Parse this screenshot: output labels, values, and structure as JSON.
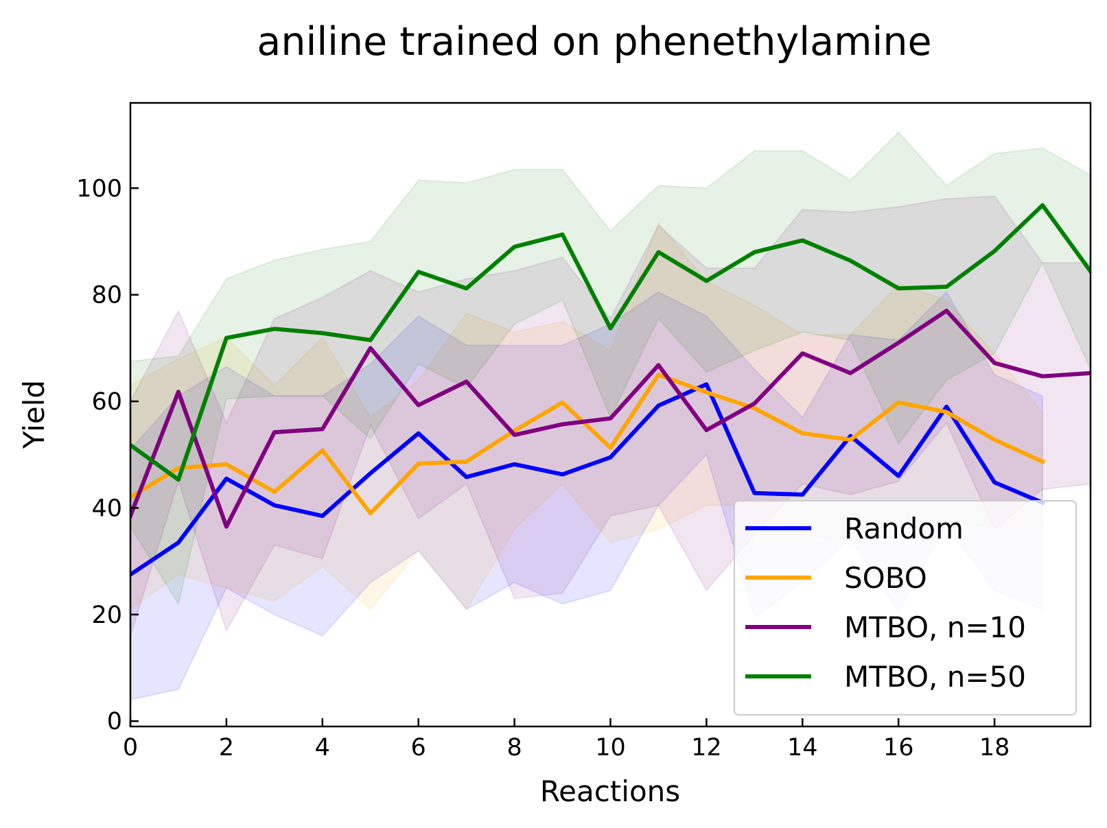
{
  "chart_data": {
    "type": "line",
    "title": "aniline trained on phenethylamine",
    "xlabel": "Reactions",
    "ylabel": "Yield",
    "xlim": [
      0,
      20
    ],
    "ylim": [
      -1,
      116
    ],
    "xticks": [
      0,
      2,
      4,
      6,
      8,
      10,
      12,
      14,
      16,
      18
    ],
    "yticks": [
      0,
      20,
      40,
      60,
      80,
      100
    ],
    "grid": false,
    "legend_position": "lower-right",
    "series": [
      {
        "name": "Random",
        "color": "#0000ff",
        "x": [
          0,
          1,
          2,
          3,
          4,
          5,
          6,
          7,
          8,
          9,
          10,
          11,
          12,
          13,
          14,
          15,
          16,
          17,
          18,
          19
        ],
        "values": [
          27.5,
          33.5,
          45.5,
          40.5,
          38.5,
          46.5,
          54.0,
          45.8,
          48.2,
          46.3,
          49.5,
          59.2,
          63.2,
          42.8,
          42.5,
          53.5,
          46.0,
          59.0,
          44.8,
          41.0
        ],
        "lower": [
          4.0,
          6.0,
          25.0,
          20.0,
          16.0,
          26.0,
          32.0,
          21.0,
          26.0,
          22.0,
          24.5,
          40.5,
          50.0,
          19.5,
          26.0,
          34.5,
          20.5,
          37.0,
          24.5,
          21.0
        ],
        "upper": [
          51.0,
          61.0,
          66.5,
          61.0,
          61.0,
          67.0,
          76.0,
          70.5,
          70.5,
          70.5,
          74.5,
          80.5,
          76.0,
          66.0,
          57.0,
          72.5,
          71.5,
          80.5,
          65.0,
          61.0
        ]
      },
      {
        "name": "SOBO",
        "color": "#ffa500",
        "x": [
          0,
          1,
          2,
          3,
          4,
          5,
          6,
          7,
          8,
          9,
          10,
          11,
          12,
          13,
          14,
          15,
          16,
          17,
          18,
          19
        ],
        "values": [
          42.0,
          47.5,
          48.2,
          43.0,
          50.8,
          39.0,
          48.3,
          48.7,
          54.5,
          59.8,
          51.3,
          65.0,
          61.7,
          58.7,
          54.0,
          52.8,
          59.8,
          58.0,
          52.8,
          48.7
        ],
        "lower": [
          21.0,
          27.5,
          25.0,
          22.5,
          29.0,
          21.0,
          32.0,
          21.0,
          36.0,
          44.5,
          33.5,
          36.0,
          40.5,
          40.5,
          35.5,
          33.0,
          38.0,
          37.0,
          36.5,
          36.5
        ],
        "upper": [
          63.0,
          68.0,
          72.0,
          63.0,
          72.0,
          57.0,
          64.0,
          76.5,
          73.0,
          75.0,
          69.5,
          93.5,
          82.5,
          78.0,
          72.5,
          72.5,
          82.0,
          79.0,
          69.0,
          58.0
        ]
      },
      {
        "name": "MTBO, n=10",
        "color": "#800080",
        "x": [
          0,
          1,
          2,
          3,
          4,
          5,
          6,
          7,
          8,
          9,
          10,
          11,
          12,
          13,
          14,
          15,
          16,
          17,
          18,
          19,
          20
        ],
        "values": [
          38.5,
          61.8,
          36.5,
          54.2,
          54.8,
          70.0,
          59.3,
          63.7,
          53.7,
          55.7,
          56.8,
          66.8,
          54.6,
          59.6,
          69.0,
          65.3,
          71.0,
          77.0,
          67.2,
          64.7,
          65.3
        ],
        "lower": [
          16.0,
          45.0,
          17.0,
          33.0,
          30.5,
          55.5,
          38.0,
          44.5,
          23.0,
          24.0,
          38.5,
          40.5,
          24.5,
          35.0,
          44.5,
          42.5,
          45.0,
          56.0,
          36.0,
          43.5,
          44.5
        ],
        "upper": [
          60.0,
          77.0,
          56.0,
          75.5,
          79.5,
          84.5,
          80.5,
          83.0,
          84.5,
          87.0,
          75.5,
          93.0,
          85.0,
          85.0,
          96.0,
          95.5,
          96.5,
          98.0,
          98.5,
          86.0,
          86.0
        ]
      },
      {
        "name": "MTBO, n=50",
        "color": "#008000",
        "x": [
          0,
          1,
          2,
          3,
          4,
          5,
          6,
          7,
          8,
          9,
          10,
          11,
          12,
          13,
          14,
          15,
          16,
          17,
          18,
          19,
          20
        ],
        "values": [
          51.8,
          45.3,
          71.9,
          73.6,
          72.8,
          71.5,
          84.3,
          81.2,
          89.0,
          91.3,
          73.7,
          88.0,
          82.6,
          88.0,
          90.2,
          86.4,
          81.2,
          81.5,
          88.2,
          96.8,
          84.4
        ],
        "lower": [
          36.5,
          22.0,
          60.5,
          61.0,
          61.0,
          53.0,
          67.0,
          62.5,
          74.5,
          79.0,
          57.0,
          75.5,
          65.5,
          69.5,
          73.0,
          71.5,
          52.0,
          64.0,
          69.0,
          86.0,
          66.0
        ],
        "upper": [
          67.5,
          68.5,
          83.0,
          86.5,
          88.5,
          90.0,
          101.5,
          101.0,
          103.5,
          103.5,
          92.0,
          100.5,
          100.0,
          107.0,
          107.0,
          101.5,
          110.5,
          100.5,
          106.5,
          107.5,
          102.5
        ]
      }
    ]
  }
}
